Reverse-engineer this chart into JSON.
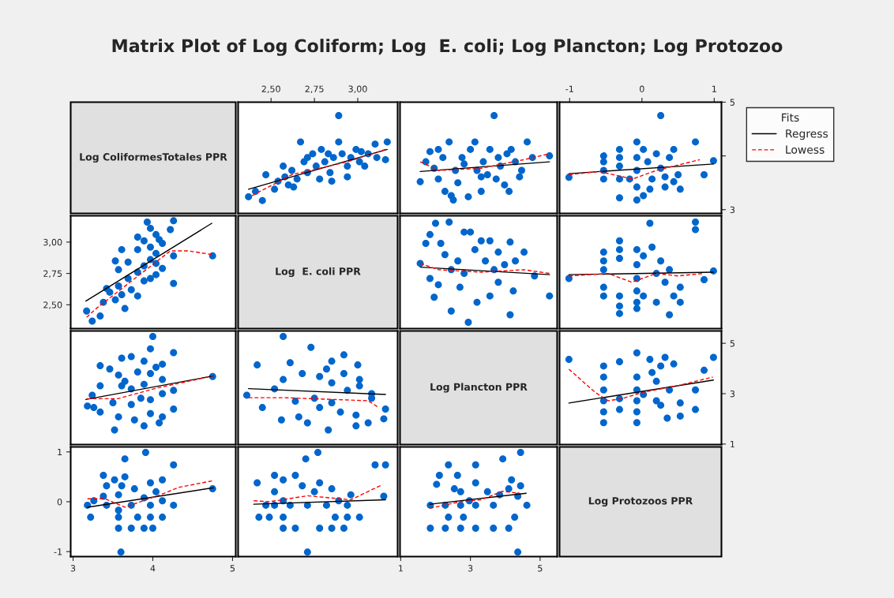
{
  "chart_data": [
    {
      "type": "other",
      "title": "Matrix Plot of Log Coliform; Log  E. coli; Log Plancton; Log Protozoo",
      "annotations": [
        "Log ColiformesTotales PPR"
      ]
    },
    {
      "type": "scatter",
      "xlim": [
        2.31,
        3.23
      ],
      "ylim": [
        2.93,
        5.0
      ],
      "xticks": [
        {
          "value": 2.5,
          "label": "2,50"
        },
        {
          "value": 2.75,
          "label": "2,75"
        },
        {
          "value": 3.0,
          "label": "3,00"
        }
      ],
      "tick_labels": "x",
      "series": [
        {
          "type": "scatter",
          "color": "#0066cc",
          "marker": "circle",
          "x": [
            2.37,
            2.41,
            2.45,
            2.47,
            2.52,
            2.54,
            2.58,
            2.57,
            2.6,
            2.62,
            2.65,
            2.67,
            2.69,
            2.71,
            2.74,
            2.76,
            2.78,
            2.79,
            2.81,
            2.84,
            2.85,
            2.86,
            2.89,
            2.89,
            2.91,
            2.94,
            2.96,
            2.94,
            2.99,
            3.01,
            3.04,
            3.06,
            3.1,
            3.11,
            3.16,
            3.17,
            3.02,
            2.71,
            2.83,
            2.63
          ],
          "values": [
            3.24,
            3.34,
            3.17,
            3.65,
            3.38,
            3.53,
            3.61,
            3.81,
            3.46,
            3.73,
            3.57,
            4.26,
            3.89,
            3.69,
            4.04,
            3.81,
            3.57,
            4.12,
            3.89,
            3.69,
            3.53,
            3.97,
            4.75,
            4.26,
            4.04,
            3.81,
            3.97,
            3.61,
            4.12,
            3.89,
            3.81,
            4.04,
            4.22,
            3.97,
            3.93,
            4.26,
            4.08,
            3.97,
            4.04,
            3.42
          ]
        },
        {
          "type": "line",
          "color": "#000000",
          "line_style": "solid",
          "x": [
            2.37,
            3.17
          ],
          "values": [
            3.38,
            4.12
          ]
        },
        {
          "type": "line",
          "color": "#ff0000",
          "line_style": "dashed",
          "x": [
            2.39,
            2.62,
            2.94,
            3.16
          ],
          "values": [
            3.26,
            3.65,
            3.89,
            4.12
          ]
        }
      ]
    },
    {
      "type": "scatter",
      "xlim": [
        0.98,
        5.49
      ],
      "ylim": [
        2.93,
        5.0
      ],
      "tick_labels": false,
      "series": [
        {
          "type": "scatter",
          "color": "#0066cc",
          "marker": "circle",
          "x": [
            1.56,
            1.72,
            1.84,
            1.96,
            2.08,
            2.21,
            2.27,
            2.39,
            2.45,
            2.57,
            2.64,
            2.76,
            2.82,
            2.94,
            3.0,
            3.13,
            3.19,
            3.31,
            3.37,
            3.49,
            3.56,
            3.68,
            3.74,
            3.86,
            3.98,
            4.05,
            4.17,
            4.11,
            4.29,
            4.41,
            4.47,
            4.63,
            4.78,
            5.27,
            2.51,
            3.31,
            2.08,
            3.8
          ],
          "values": [
            3.52,
            3.89,
            4.08,
            3.77,
            3.57,
            3.97,
            3.34,
            4.26,
            3.26,
            3.73,
            3.5,
            3.97,
            3.85,
            3.24,
            4.12,
            4.26,
            3.73,
            3.34,
            3.89,
            3.65,
            4.12,
            4.75,
            3.57,
            3.81,
            3.46,
            4.04,
            4.12,
            3.34,
            3.89,
            3.61,
            3.73,
            4.26,
            3.97,
            4.0,
            3.18,
            3.61,
            4.12,
            3.97
          ]
        },
        {
          "type": "line",
          "color": "#000000",
          "line_style": "solid",
          "x": [
            1.56,
            5.27
          ],
          "values": [
            3.71,
            3.89
          ]
        },
        {
          "type": "line",
          "color": "#ff0000",
          "line_style": "dashed",
          "x": [
            1.56,
            2.08,
            3.31,
            4.54,
            5.27
          ],
          "values": [
            3.89,
            3.73,
            3.77,
            3.93,
            4.04
          ]
        }
      ]
    },
    {
      "type": "scatter",
      "xlim": [
        -1.14,
        1.1
      ],
      "ylim": [
        2.93,
        5.0
      ],
      "xticks": [
        -1,
        0,
        1
      ],
      "yticks": [
        3,
        {
          "value": 4,
          "label": null
        },
        5
      ],
      "legend": "right",
      "legend_title": "Fits",
      "series": [
        {
          "type": "scatter",
          "color": "#0066cc",
          "marker": "circle",
          "x": [
            -1.01,
            -0.53,
            -0.53,
            -0.53,
            -0.53,
            -0.31,
            -0.31,
            -0.31,
            -0.31,
            -0.31,
            -0.07,
            -0.07,
            -0.07,
            -0.07,
            -0.07,
            0.02,
            0.08,
            0.14,
            0.2,
            0.26,
            0.32,
            0.38,
            0.44,
            0.5,
            0.53,
            0.26,
            0.74,
            0.86,
            0.99,
            -0.17,
            0.02,
            0.32,
            0.44,
            0.11
          ],
          "values": [
            3.6,
            3.89,
            3.73,
            3.57,
            4.0,
            4.12,
            3.97,
            3.81,
            3.57,
            3.22,
            4.26,
            3.97,
            3.73,
            3.42,
            3.18,
            4.12,
            3.89,
            3.57,
            4.04,
            3.77,
            3.42,
            3.97,
            4.12,
            3.65,
            3.38,
            4.75,
            4.26,
            3.65,
            3.91,
            3.57,
            3.26,
            3.61,
            3.52,
            3.38
          ]
        },
        {
          "type": "line",
          "name": "Regress",
          "color": "#000000",
          "line_style": "solid",
          "x": [
            -1.01,
            0.99
          ],
          "values": [
            3.67,
            3.85
          ]
        },
        {
          "type": "line",
          "name": "Lowess",
          "color": "#ff0000",
          "line_style": "dashed",
          "x": [
            -1.01,
            -0.59,
            -0.13,
            0.2,
            0.62,
            0.8
          ],
          "values": [
            3.65,
            3.71,
            3.57,
            3.73,
            3.87,
            3.93
          ]
        }
      ]
    },
    {
      "type": "scatter",
      "xlim": [
        2.97,
        5.04
      ],
      "ylim": [
        2.31,
        3.21
      ],
      "yticks": [
        {
          "value": 2.5,
          "label": "2,50"
        },
        {
          "value": 2.75,
          "label": "2,75"
        },
        {
          "value": 3.0,
          "label": "3,00"
        }
      ],
      "tick_labels": "y",
      "series": [
        {
          "type": "scatter",
          "color": "#0066cc",
          "marker": "circle",
          "x": [
            3.24,
            3.34,
            3.17,
            3.65,
            3.38,
            3.53,
            3.61,
            3.81,
            3.46,
            3.73,
            3.57,
            4.26,
            3.89,
            3.69,
            4.04,
            3.81,
            3.57,
            4.12,
            3.89,
            3.69,
            3.53,
            3.97,
            4.75,
            4.26,
            4.04,
            3.81,
            3.97,
            3.61,
            4.12,
            3.89,
            3.81,
            4.04,
            4.22,
            3.97,
            3.93,
            4.26,
            4.08,
            3.97,
            4.04,
            3.42
          ],
          "values": [
            2.37,
            2.41,
            2.45,
            2.47,
            2.52,
            2.54,
            2.58,
            2.57,
            2.6,
            2.62,
            2.65,
            2.67,
            2.69,
            2.71,
            2.74,
            2.76,
            2.78,
            2.79,
            2.81,
            2.84,
            2.85,
            2.86,
            2.89,
            2.89,
            2.91,
            2.94,
            2.96,
            2.94,
            2.99,
            3.01,
            3.04,
            3.06,
            3.1,
            3.11,
            3.16,
            3.17,
            3.02,
            2.71,
            2.83,
            2.63
          ]
        },
        {
          "type": "line",
          "color": "#000000",
          "line_style": "solid",
          "x": [
            3.16,
            4.74
          ],
          "values": [
            2.53,
            3.15
          ]
        },
        {
          "type": "line",
          "color": "#ff0000",
          "line_style": "dashed",
          "x": [
            3.17,
            3.29,
            4.22,
            4.44,
            4.75
          ],
          "values": [
            2.4,
            2.47,
            2.93,
            2.93,
            2.9
          ]
        }
      ]
    },
    {
      "type": "other",
      "annotations": [
        "Log  E. coli PPR"
      ]
    },
    {
      "type": "scatter",
      "xlim": [
        0.98,
        5.49
      ],
      "ylim": [
        2.31,
        3.21
      ],
      "tick_labels": false,
      "series": [
        {
          "type": "scatter",
          "color": "#0066cc",
          "marker": "circle",
          "x": [
            1.56,
            1.72,
            1.84,
            2.0,
            2.39,
            2.15,
            2.27,
            2.45,
            2.64,
            2.82,
            3.0,
            3.13,
            3.31,
            3.43,
            3.56,
            3.68,
            3.8,
            3.98,
            4.14,
            4.29,
            4.54,
            4.84,
            5.27,
            4.14,
            2.94,
            2.45,
            1.96,
            2.08,
            2.7,
            3.19,
            3.56,
            4.23,
            2.82,
            3.8,
            1.84
          ],
          "values": [
            2.83,
            2.99,
            3.06,
            3.15,
            3.16,
            2.99,
            2.9,
            2.78,
            2.85,
            3.08,
            3.08,
            2.94,
            3.01,
            2.85,
            3.01,
            2.78,
            2.92,
            2.82,
            3.0,
            2.85,
            2.92,
            2.73,
            2.57,
            2.42,
            2.36,
            2.45,
            2.56,
            2.66,
            2.64,
            2.52,
            2.57,
            2.61,
            2.75,
            2.68,
            2.71
          ]
        },
        {
          "type": "line",
          "color": "#000000",
          "line_style": "solid",
          "x": [
            1.56,
            5.27
          ],
          "values": [
            2.8,
            2.74
          ]
        },
        {
          "type": "line",
          "color": "#ff0000",
          "line_style": "dashed",
          "x": [
            1.56,
            2.08,
            3.31,
            4.54,
            5.27
          ],
          "values": [
            2.83,
            2.78,
            2.76,
            2.78,
            2.75
          ]
        }
      ]
    },
    {
      "type": "scatter",
      "xlim": [
        -1.14,
        1.1
      ],
      "ylim": [
        2.31,
        3.21
      ],
      "tick_labels": false,
      "series": [
        {
          "type": "scatter",
          "color": "#0066cc",
          "marker": "circle",
          "x": [
            -1.01,
            -0.53,
            -0.53,
            -0.53,
            -0.53,
            -0.53,
            -0.31,
            -0.31,
            -0.31,
            -0.31,
            -0.31,
            -0.31,
            -0.07,
            -0.07,
            -0.07,
            -0.07,
            -0.07,
            -0.07,
            0.11,
            0.02,
            0.14,
            0.2,
            0.26,
            0.32,
            0.38,
            0.44,
            0.53,
            0.53,
            0.38,
            0.74,
            0.74,
            0.86,
            0.99,
            0.02,
            0.2
          ],
          "values": [
            2.71,
            2.92,
            2.85,
            2.78,
            2.64,
            2.57,
            3.01,
            2.94,
            2.87,
            2.57,
            2.49,
            2.43,
            2.94,
            2.82,
            2.71,
            2.61,
            2.52,
            2.47,
            3.15,
            2.89,
            2.96,
            2.75,
            2.85,
            2.68,
            2.78,
            2.57,
            2.64,
            2.52,
            2.42,
            3.16,
            3.1,
            2.7,
            2.77,
            2.57,
            2.52
          ]
        },
        {
          "type": "line",
          "color": "#000000",
          "line_style": "solid",
          "x": [
            -1.01,
            0.99
          ],
          "values": [
            2.74,
            2.76
          ]
        },
        {
          "type": "line",
          "color": "#ff0000",
          "line_style": "dashed",
          "x": [
            -1.01,
            -0.47,
            -0.14,
            0.2,
            0.5,
            0.86
          ],
          "values": [
            2.73,
            2.75,
            2.68,
            2.75,
            2.73,
            2.75
          ]
        }
      ]
    },
    {
      "type": "scatter",
      "xlim": [
        2.97,
        5.04
      ],
      "ylim": [
        0.98,
        5.49
      ],
      "tick_labels": false,
      "series": [
        {
          "type": "scatter",
          "color": "#0066cc",
          "marker": "circle",
          "x": [
            3.52,
            3.89,
            4.08,
            3.77,
            3.57,
            3.97,
            3.34,
            4.26,
            3.26,
            3.73,
            3.5,
            3.97,
            3.85,
            3.24,
            4.12,
            4.26,
            3.73,
            3.34,
            3.89,
            3.65,
            4.12,
            4.75,
            3.57,
            3.81,
            3.46,
            4.04,
            4.12,
            3.34,
            3.89,
            3.61,
            3.73,
            4.26,
            3.97,
            4.0,
            3.18,
            3.61,
            4.12,
            3.97
          ],
          "values": [
            1.56,
            1.72,
            1.84,
            1.96,
            2.08,
            2.21,
            2.27,
            2.39,
            2.45,
            2.57,
            2.64,
            2.76,
            2.82,
            2.94,
            3.0,
            3.13,
            3.19,
            3.31,
            3.37,
            3.49,
            3.56,
            3.68,
            3.74,
            3.86,
            3.98,
            4.05,
            4.17,
            4.11,
            4.29,
            4.41,
            4.47,
            4.63,
            4.78,
            5.27,
            2.51,
            3.31,
            2.08,
            3.8
          ]
        },
        {
          "type": "line",
          "color": "#000000",
          "line_style": "solid",
          "x": [
            3.16,
            4.75
          ],
          "values": [
            2.77,
            3.7
          ]
        },
        {
          "type": "line",
          "color": "#ff0000",
          "line_style": "dashed",
          "x": [
            3.17,
            3.56,
            4.06,
            4.75
          ],
          "values": [
            2.8,
            2.8,
            3.23,
            3.7
          ]
        }
      ]
    },
    {
      "type": "scatter",
      "xlim": [
        2.31,
        3.23
      ],
      "ylim": [
        0.98,
        5.49
      ],
      "tick_labels": false,
      "series": [
        {
          "type": "scatter",
          "color": "#0066cc",
          "marker": "circle",
          "x": [
            2.83,
            2.99,
            3.06,
            3.15,
            3.16,
            2.99,
            2.9,
            2.78,
            2.85,
            3.08,
            3.08,
            2.94,
            3.01,
            2.85,
            3.01,
            2.78,
            2.92,
            2.82,
            3.0,
            2.85,
            2.92,
            2.73,
            2.57,
            2.42,
            2.36,
            2.45,
            2.56,
            2.66,
            2.64,
            2.52,
            2.57,
            2.61,
            2.75,
            2.68,
            2.71
          ],
          "values": [
            1.56,
            1.72,
            1.84,
            2.0,
            2.39,
            2.15,
            2.27,
            2.45,
            2.64,
            2.82,
            3.0,
            3.13,
            3.31,
            3.43,
            3.56,
            3.68,
            3.8,
            3.98,
            4.14,
            4.29,
            4.54,
            4.84,
            5.27,
            4.14,
            2.94,
            2.45,
            1.96,
            2.08,
            2.7,
            3.19,
            3.56,
            4.23,
            2.82,
            3.8,
            1.84
          ]
        },
        {
          "type": "line",
          "color": "#000000",
          "line_style": "solid",
          "x": [
            2.37,
            3.16
          ],
          "values": [
            3.2,
            2.97
          ]
        },
        {
          "type": "line",
          "color": "#ff0000",
          "line_style": "dashed",
          "x": [
            2.37,
            2.58,
            3.06,
            3.12
          ],
          "values": [
            2.84,
            2.84,
            2.72,
            2.45
          ]
        }
      ]
    },
    {
      "type": "other",
      "annotations": [
        "Log Plancton PPR"
      ]
    },
    {
      "type": "scatter",
      "xlim": [
        -1.14,
        1.1
      ],
      "ylim": [
        0.98,
        5.49
      ],
      "yticks": [
        1,
        3,
        5
      ],
      "tick_labels": "y",
      "series": [
        {
          "type": "scatter",
          "color": "#0066cc",
          "marker": "circle",
          "x": [
            -1.01,
            -0.53,
            -0.53,
            -0.53,
            -0.53,
            -0.53,
            -0.53,
            -0.31,
            -0.31,
            -0.31,
            -0.07,
            -0.07,
            -0.07,
            -0.07,
            -0.07,
            -0.07,
            0.11,
            0.14,
            0.2,
            0.26,
            0.32,
            0.38,
            0.44,
            0.53,
            0.53,
            0.26,
            0.35,
            0.74,
            0.74,
            0.86,
            0.99,
            0.02,
            0.2
          ],
          "values": [
            4.36,
            4.1,
            3.66,
            3.15,
            2.72,
            2.28,
            1.85,
            4.27,
            2.8,
            2.37,
            4.62,
            3.66,
            3.15,
            2.72,
            2.28,
            1.85,
            4.36,
            3.84,
            3.49,
            4.1,
            4.44,
            3.15,
            4.18,
            2.63,
            2.11,
            2.54,
            2.03,
            3.15,
            2.37,
            3.93,
            4.44,
            2.97,
            2.72
          ]
        },
        {
          "type": "line",
          "color": "#000000",
          "line_style": "solid",
          "x": [
            -1.01,
            0.99
          ],
          "values": [
            2.63,
            3.54
          ]
        },
        {
          "type": "line",
          "color": "#ff0000",
          "line_style": "dashed",
          "x": [
            -1.01,
            -0.65,
            -0.47,
            -0.28,
            0.02,
            0.5,
            0.98
          ],
          "values": [
            3.97,
            3.06,
            2.72,
            2.8,
            3.06,
            3.32,
            3.66
          ]
        }
      ]
    },
    {
      "type": "scatter",
      "xlim": [
        2.97,
        5.04
      ],
      "ylim": [
        -1.1,
        1.1
      ],
      "xticks": [
        3,
        4,
        5
      ],
      "yticks": [
        -1,
        0,
        1
      ],
      "series": [
        {
          "type": "scatter",
          "color": "#0066cc",
          "marker": "circle",
          "x": [
            3.6,
            3.89,
            3.73,
            3.57,
            4.0,
            4.12,
            3.97,
            3.81,
            3.57,
            3.22,
            4.26,
            3.97,
            3.73,
            3.42,
            3.18,
            4.12,
            3.89,
            3.57,
            4.04,
            3.77,
            3.42,
            3.97,
            4.12,
            3.65,
            3.38,
            4.75,
            4.26,
            3.65,
            3.91,
            3.57,
            3.26,
            3.61,
            3.52,
            3.38
          ],
          "values": [
            -1.01,
            -0.53,
            -0.53,
            -0.53,
            -0.53,
            -0.31,
            -0.31,
            -0.31,
            -0.31,
            -0.31,
            -0.07,
            -0.07,
            -0.07,
            -0.07,
            -0.07,
            0.02,
            0.08,
            0.14,
            0.2,
            0.26,
            0.32,
            0.38,
            0.44,
            0.5,
            0.53,
            0.26,
            0.74,
            0.86,
            0.99,
            -0.17,
            0.02,
            0.32,
            0.44,
            0.11
          ]
        },
        {
          "type": "line",
          "color": "#000000",
          "line_style": "solid",
          "x": [
            3.18,
            4.76
          ],
          "values": [
            -0.11,
            0.28
          ]
        },
        {
          "type": "line",
          "color": "#ff0000",
          "line_style": "dashed",
          "x": [
            3.18,
            3.4,
            3.65,
            4.11,
            4.33,
            4.75
          ],
          "values": [
            0.06,
            0.06,
            -0.11,
            0.15,
            0.29,
            0.42
          ]
        }
      ]
    },
    {
      "type": "scatter",
      "xlim": [
        2.31,
        3.23
      ],
      "ylim": [
        -1.1,
        1.1
      ],
      "tick_labels": false,
      "series": [
        {
          "type": "scatter",
          "color": "#0066cc",
          "marker": "circle",
          "x": [
            2.71,
            2.92,
            2.85,
            2.78,
            2.64,
            2.57,
            3.01,
            2.94,
            2.87,
            2.57,
            2.49,
            2.43,
            2.94,
            2.82,
            2.71,
            2.61,
            2.52,
            2.47,
            3.15,
            2.89,
            2.96,
            2.75,
            2.85,
            2.68,
            2.78,
            2.57,
            2.64,
            2.52,
            2.42,
            3.16,
            3.1,
            2.7,
            2.77,
            2.57,
            2.52
          ],
          "values": [
            -1.01,
            -0.53,
            -0.53,
            -0.53,
            -0.53,
            -0.53,
            -0.31,
            -0.31,
            -0.31,
            -0.31,
            -0.31,
            -0.31,
            -0.07,
            -0.07,
            -0.07,
            -0.07,
            -0.07,
            -0.07,
            0.11,
            0.02,
            0.14,
            0.2,
            0.26,
            0.32,
            0.38,
            0.44,
            0.53,
            0.53,
            0.38,
            0.74,
            0.74,
            0.86,
            0.99,
            0.02,
            0.2
          ]
        },
        {
          "type": "line",
          "color": "#000000",
          "line_style": "solid",
          "x": [
            2.4,
            3.16
          ],
          "values": [
            -0.05,
            0.04
          ]
        },
        {
          "type": "line",
          "color": "#ff0000",
          "line_style": "dashed",
          "x": [
            2.4,
            2.49,
            2.71,
            2.96,
            3.14
          ],
          "values": [
            0.02,
            0.0,
            0.12,
            0.04,
            0.34
          ]
        }
      ]
    },
    {
      "type": "scatter",
      "xlim": [
        0.98,
        5.49
      ],
      "ylim": [
        -1.1,
        1.1
      ],
      "xticks": [
        1,
        3,
        5
      ],
      "tick_labels": "x",
      "series": [
        {
          "type": "scatter",
          "color": "#0066cc",
          "marker": "circle",
          "x": [
            4.36,
            4.1,
            3.66,
            3.15,
            2.72,
            2.28,
            1.85,
            4.27,
            2.8,
            2.37,
            4.62,
            3.66,
            3.15,
            2.72,
            2.28,
            1.85,
            4.36,
            3.84,
            3.49,
            4.1,
            4.44,
            3.15,
            4.18,
            2.63,
            2.11,
            2.54,
            2.03,
            3.15,
            2.37,
            3.93,
            4.44,
            2.97,
            2.72
          ],
          "values": [
            -1.01,
            -0.53,
            -0.53,
            -0.53,
            -0.53,
            -0.53,
            -0.53,
            -0.31,
            -0.31,
            -0.31,
            -0.07,
            -0.07,
            -0.07,
            -0.07,
            -0.07,
            -0.07,
            0.11,
            0.14,
            0.2,
            0.26,
            0.32,
            0.38,
            0.44,
            0.53,
            0.53,
            0.26,
            0.35,
            0.74,
            0.74,
            0.86,
            0.99,
            0.02,
            0.2
          ]
        },
        {
          "type": "line",
          "color": "#000000",
          "line_style": "solid",
          "x": [
            1.84,
            4.6
          ],
          "values": [
            -0.05,
            0.17
          ]
        },
        {
          "type": "line",
          "color": "#ff0000",
          "line_style": "dashed",
          "x": [
            1.84,
            2.7,
            3.31,
            3.92,
            4.41
          ],
          "values": [
            -0.13,
            0.0,
            0.04,
            0.21,
            0.17
          ]
        }
      ]
    },
    {
      "type": "other",
      "annotations": [
        "Log Protozoos PPR"
      ]
    }
  ]
}
